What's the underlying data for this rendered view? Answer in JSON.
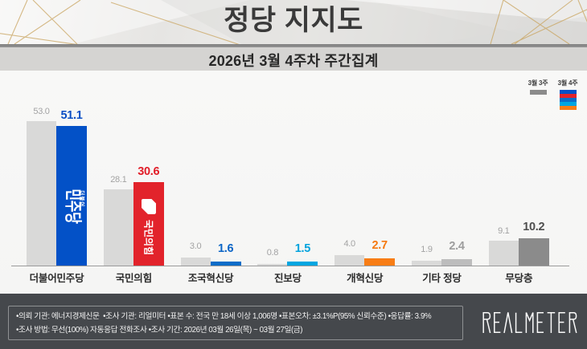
{
  "header": {
    "title": "정당 지지도",
    "subtitle": "2026년 3월 4주차 주간집계"
  },
  "legend": {
    "previous_label": "3월 3주",
    "current_label": "3월 4주"
  },
  "chart_data": {
    "type": "bar",
    "title": "정당 지지도",
    "subtitle": "2026년 3월 4주차 주간집계",
    "categories": [
      "더불어민주당",
      "국민의힘",
      "조국혁신당",
      "진보당",
      "개혁신당",
      "기타 정당",
      "무당층"
    ],
    "series": [
      {
        "name": "3월 3주",
        "values": [
          53.0,
          28.1,
          3.0,
          0.8,
          4.0,
          1.9,
          9.1
        ],
        "labels": [
          "53.0",
          "28.1",
          "3.0",
          "0.8",
          "4.0",
          "1.9",
          "9.1"
        ]
      },
      {
        "name": "3월 4주",
        "values": [
          51.1,
          30.6,
          1.6,
          1.5,
          2.7,
          2.4,
          10.2
        ],
        "labels": [
          "51.1",
          "30.6",
          "1.6",
          "1.5",
          "2.7",
          "2.4",
          "10.2"
        ]
      }
    ],
    "bar_color_previous": "#d9d9d8",
    "bar_colors_current": [
      "#0351c7",
      "#e2232b",
      "#0c6dc8",
      "#00a6e1",
      "#f87d15",
      "#bdbdbd",
      "#8b8b8b"
    ],
    "value_color_previous": "#a3a3a3",
    "value_colors_current": [
      "#0a4ec4",
      "#e11d28",
      "#0a64c6",
      "#00a3dd",
      "#f5790f",
      "#9d9d9d",
      "#4e4e4e"
    ],
    "ylim": [
      0,
      60
    ],
    "grid": false,
    "legend_position": "top-right",
    "bar_logos": {
      "0": {
        "type": "text",
        "small": "더불어",
        "big": "민주당"
      },
      "1": {
        "type": "symbol-text",
        "symbol": "speech-bubble",
        "text": "국민의힘"
      }
    }
  },
  "footer": {
    "line1": "•의뢰 기관: 에너지경제신문  •조사 기관: 리얼미터 •표본 수: 전국 만 18세 이상 1,006명 •표본오차: ±3.1%P(95% 신뢰수준) •응답률: 3.9%",
    "line2": "•조사 방법: 무선(100%) 자동응답 전화조사 •조사 기간: 2026년 03월 26일(목) ~ 03월 27일(금)",
    "logo_text": "REALMETER"
  }
}
